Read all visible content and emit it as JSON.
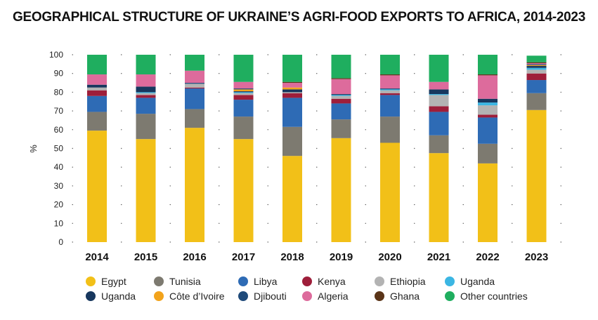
{
  "chart_data": {
    "type": "bar",
    "stacked": true,
    "title": "GEOGRAPHICAL STRUCTURE OF UKRAINE’S AGRI-FOOD EXPORTS TO AFRICA, 2014-2023",
    "xlabel": "",
    "ylabel": "%",
    "ylim": [
      0,
      100
    ],
    "yticks": [
      0,
      10,
      20,
      30,
      40,
      50,
      60,
      70,
      80,
      90,
      100
    ],
    "categories": [
      "2014",
      "2015",
      "2016",
      "2017",
      "2018",
      "2019",
      "2020",
      "2021",
      "2022",
      "2023"
    ],
    "series": [
      {
        "name": "Egypt",
        "color": "#f2c018",
        "values": [
          59.5,
          55,
          61,
          55,
          46,
          55.5,
          53,
          47.5,
          42,
          70.5
        ]
      },
      {
        "name": "Tunisia",
        "color": "#7d7a70",
        "values": [
          10,
          13.5,
          10,
          12,
          15.5,
          10,
          14,
          9.5,
          10.5,
          9
        ]
      },
      {
        "name": "Libya",
        "color": "#2e6bb5",
        "values": [
          8.5,
          8.5,
          11,
          9,
          15.5,
          8.5,
          11.5,
          12.5,
          14,
          7
        ]
      },
      {
        "name": "Kenya",
        "color": "#9e1e3a",
        "values": [
          3,
          1.5,
          0.5,
          2.5,
          2.5,
          2.5,
          1,
          3,
          1.5,
          3.5
        ]
      },
      {
        "name": "Ethiopia",
        "color": "#b3b3b3",
        "values": [
          1.5,
          1,
          2,
          1,
          0.5,
          1.5,
          1.5,
          6,
          5,
          2
        ]
      },
      {
        "name": "Uganda",
        "color": "#3bb6e3",
        "values": [
          0,
          0.5,
          0,
          0.5,
          0,
          0.5,
          0.5,
          0.5,
          1.5,
          1
        ]
      },
      {
        "name": "Uganda",
        "color": "#17375e",
        "values": [
          1.5,
          3,
          0,
          0.5,
          1.5,
          0.5,
          0,
          2.5,
          2,
          1
        ]
      },
      {
        "name": "Côte d’Ivoire",
        "color": "#f2a31c",
        "values": [
          0,
          0,
          0,
          1,
          1,
          0,
          0,
          0,
          0,
          0.5
        ]
      },
      {
        "name": "Djibouti",
        "color": "#1f4a7a",
        "values": [
          0,
          0,
          0.5,
          0.5,
          0,
          0,
          0.5,
          0,
          0,
          0.5
        ]
      },
      {
        "name": "Algeria",
        "color": "#dd6b9c",
        "values": [
          5.5,
          6.5,
          6.5,
          3.5,
          2.5,
          8,
          7,
          4,
          12.5,
          0.5
        ]
      },
      {
        "name": "Ghana",
        "color": "#5a3418",
        "values": [
          0,
          0,
          0,
          0,
          0.5,
          0.5,
          0.5,
          0,
          0.5,
          0.5
        ]
      },
      {
        "name": "Other countries",
        "color": "#1fae5f",
        "values": [
          10.5,
          10.5,
          8.5,
          14.5,
          14.5,
          12.5,
          10.5,
          14.5,
          10.5,
          3.5
        ]
      }
    ],
    "legend": {
      "placement": "bottom",
      "rows": [
        [
          {
            "label": "Egypt",
            "color": "#f2c018"
          },
          {
            "label": "Tunisia",
            "color": "#7d7a70"
          },
          {
            "label": "Libya",
            "color": "#2e6bb5"
          },
          {
            "label": "Kenya",
            "color": "#9e1e3a"
          },
          {
            "label": "Ethiopia",
            "color": "#b3b3b3"
          },
          {
            "label": "Uganda",
            "color": "#3bb6e3"
          }
        ],
        [
          {
            "label": "Uganda",
            "color": "#17375e"
          },
          {
            "label": "Côte d’Ivoire",
            "color": "#f2a31c"
          },
          {
            "label": "Djibouti",
            "color": "#1f4a7a"
          },
          {
            "label": "Algeria",
            "color": "#dd6b9c"
          },
          {
            "label": "Ghana",
            "color": "#5a3418"
          },
          {
            "label": "Other countries",
            "color": "#1fae5f"
          }
        ]
      ]
    }
  }
}
